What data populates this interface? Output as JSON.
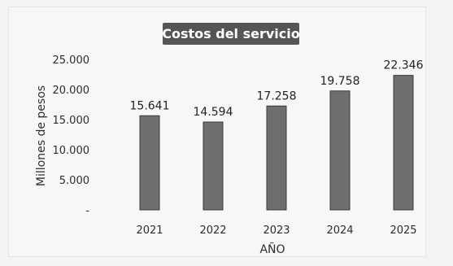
{
  "chart_data": {
    "type": "bar",
    "title": "Costos del servicio",
    "xlabel": "AÑO",
    "ylabel": "Millones de pesos",
    "categories": [
      "2021",
      "2022",
      "2023",
      "2024",
      "2025"
    ],
    "values": [
      15641,
      14594,
      17258,
      19758,
      22346
    ],
    "value_labels": [
      "15.641",
      "14.594",
      "17.258",
      "19.758",
      "22.346"
    ],
    "ylim": [
      0,
      25000
    ],
    "yticks": [
      0,
      5000,
      10000,
      15000,
      20000,
      25000
    ],
    "ytick_labels": [
      "-",
      "5.000",
      "10.000",
      "15.000",
      "20.000",
      "25.000"
    ],
    "grid": false,
    "legend": "none",
    "colors": {
      "bar": "#6e6e6e",
      "bar_edge": "#3a3a3a",
      "title_bg": "#555555",
      "title_text": "#ffffff"
    }
  }
}
